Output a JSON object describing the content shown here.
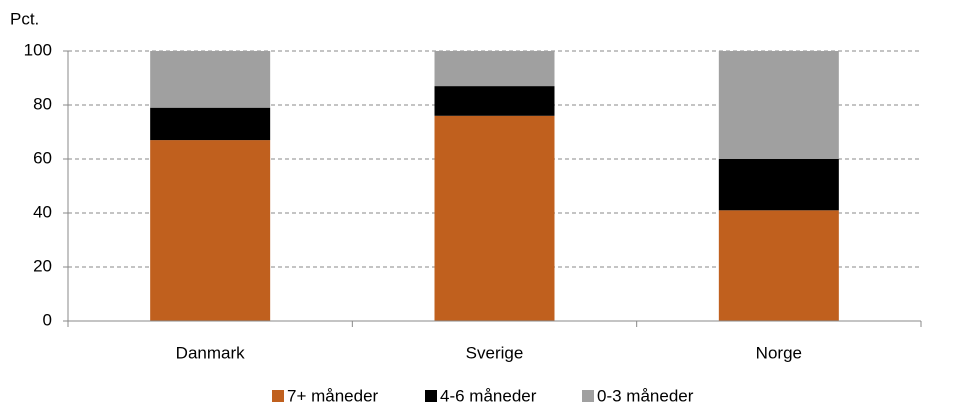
{
  "chart_data": {
    "type": "stacked_bar",
    "y_label": "Pct.",
    "categories": [
      "Danmark",
      "Sverige",
      "Norge"
    ],
    "series": [
      {
        "name": "7+ måneder",
        "color": "#c0601e",
        "values": [
          67,
          76,
          41
        ]
      },
      {
        "name": "4-6 måneder",
        "color": "#000000",
        "values": [
          12,
          11,
          19
        ]
      },
      {
        "name": "0-3 måneder",
        "color": "#a0a0a0",
        "values": [
          21,
          13,
          40
        ]
      }
    ],
    "ylim": [
      0,
      100
    ],
    "yticks": [
      0,
      20,
      40,
      60,
      80,
      100
    ],
    "grid": true,
    "legend": "bottom"
  }
}
